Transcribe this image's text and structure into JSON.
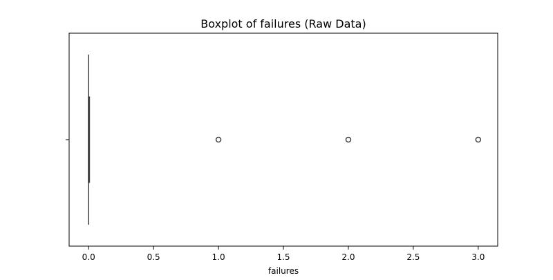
{
  "chart_data": {
    "type": "boxplot",
    "title": "Boxplot of failures (Raw Data)",
    "xlabel": "failures",
    "ylabel": "",
    "xlim": [
      -0.15,
      3.15
    ],
    "x_ticks": [
      0.0,
      0.5,
      1.0,
      1.5,
      2.0,
      2.5,
      3.0
    ],
    "x_tick_labels": [
      "0.0",
      "0.5",
      "1.0",
      "1.5",
      "2.0",
      "2.5",
      "3.0"
    ],
    "box": {
      "min": 0,
      "q1": 0,
      "median": 0,
      "q3": 0,
      "max": 0
    },
    "outliers": [
      1,
      2,
      3
    ],
    "orientation": "horizontal",
    "grid": false,
    "colors": {
      "box_edge": "#3f3f3f",
      "box_fill": "#3274a1",
      "outlier_edge": "#3f3f3f",
      "axis": "#000000"
    }
  }
}
